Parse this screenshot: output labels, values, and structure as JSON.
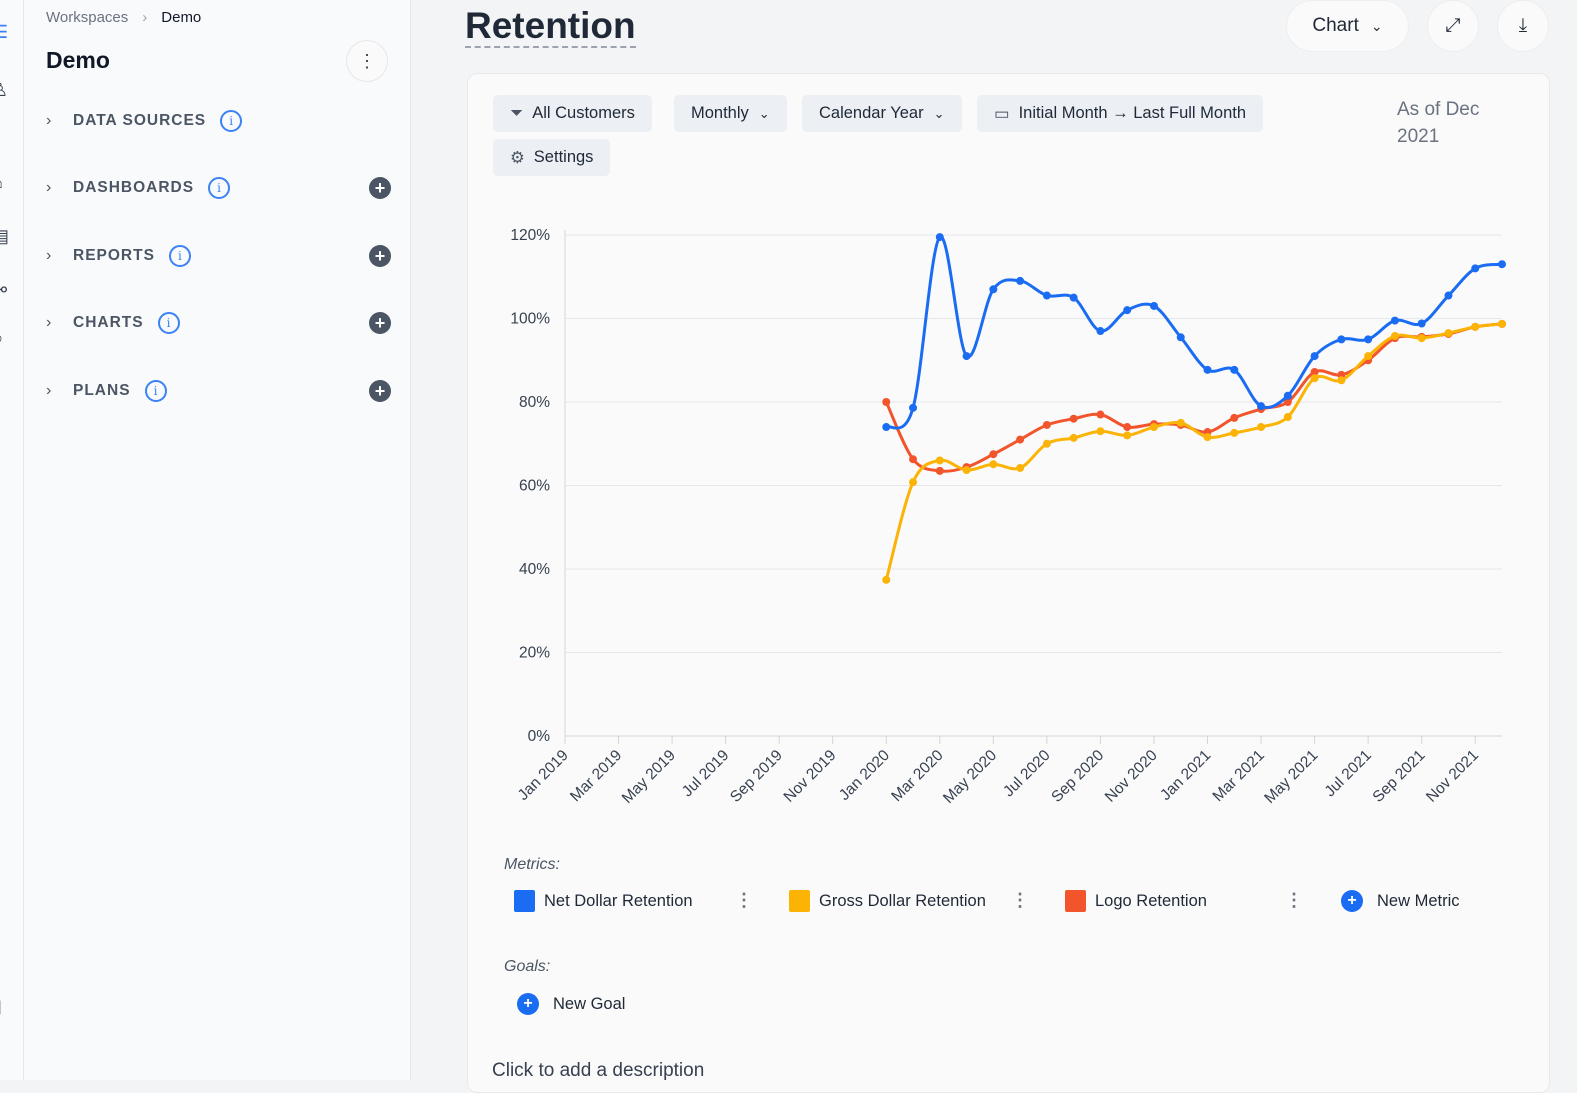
{
  "breadcrumb": {
    "items": [
      "Workspaces",
      "Demo"
    ]
  },
  "sidebar": {
    "title": "Demo",
    "sections": [
      {
        "label": "DATA SOURCES",
        "has_add": false
      },
      {
        "label": "DASHBOARDS",
        "has_add": true
      },
      {
        "label": "REPORTS",
        "has_add": true
      },
      {
        "label": "CHARTS",
        "has_add": true
      },
      {
        "label": "PLANS",
        "has_add": true
      }
    ]
  },
  "header": {
    "title": "Retention",
    "view_select": "Chart"
  },
  "filters": {
    "segment": "All Customers",
    "interval": "Monthly",
    "year_type": "Calendar Year",
    "range": "Initial Month → Last Full Month",
    "settings": "Settings",
    "as_of": "As of Dec 2021"
  },
  "chart_data": {
    "type": "line",
    "x": [
      "Jan 2020",
      "Feb 2020",
      "Mar 2020",
      "Apr 2020",
      "May 2020",
      "Jun 2020",
      "Jul 2020",
      "Aug 2020",
      "Sep 2020",
      "Oct 2020",
      "Nov 2020",
      "Dec 2020",
      "Jan 2021",
      "Feb 2021",
      "Mar 2021",
      "Apr 2021",
      "May 2021",
      "Jun 2021",
      "Jul 2021",
      "Aug 2021",
      "Sep 2021",
      "Oct 2021",
      "Nov 2021",
      "Dec 2021"
    ],
    "x_tick_labels": [
      "Jan 2019",
      "Mar 2019",
      "May 2019",
      "Jul 2019",
      "Sep 2019",
      "Nov 2019",
      "Jan 2020",
      "Mar 2020",
      "May 2020",
      "Jul 2020",
      "Sep 2020",
      "Nov 2020",
      "Jan 2021",
      "Mar 2021",
      "May 2021",
      "Jul 2021",
      "Sep 2021",
      "Nov 2021"
    ],
    "x_range": [
      "Jan 2019",
      "Dec 2021"
    ],
    "y_ticks": [
      "0%",
      "20%",
      "40%",
      "60%",
      "80%",
      "100%",
      "120%"
    ],
    "ylim": [
      0,
      120
    ],
    "y_unit": "%",
    "grid": true,
    "smooth": true,
    "series": [
      {
        "name": "Net Dollar Retention",
        "color": "#1a6cf2",
        "values": [
          74,
          78.6,
          119.5,
          91,
          107,
          109,
          105.5,
          105,
          97,
          102,
          103,
          95.5,
          87.7,
          87.7,
          79,
          81.5,
          91,
          95,
          95,
          99.5,
          98.8,
          105.5,
          112,
          113
        ]
      },
      {
        "name": "Gross Dollar Retention",
        "color": "#fbb305",
        "values": [
          37.4,
          60.8,
          66,
          63.7,
          65.1,
          64.2,
          70,
          71.4,
          73,
          72,
          74,
          75,
          71.6,
          72.6,
          74,
          76.4,
          85.7,
          85.2,
          91,
          95.8,
          95.3,
          96.5,
          98,
          98.7
        ]
      },
      {
        "name": "Logo Retention",
        "color": "#f2552c",
        "values": [
          80,
          66.3,
          63.5,
          64.4,
          67.5,
          71,
          74.5,
          76,
          77,
          74,
          74.7,
          74.5,
          72.8,
          76.2,
          78.3,
          80,
          87.2,
          86.5,
          90,
          95.3,
          95.6,
          96.3,
          98,
          98.7
        ]
      }
    ]
  },
  "metrics": {
    "label": "Metrics:",
    "new_metric": "New Metric"
  },
  "goals": {
    "label": "Goals:",
    "new_goal": "New Goal"
  },
  "description_placeholder": "Click to add a description"
}
